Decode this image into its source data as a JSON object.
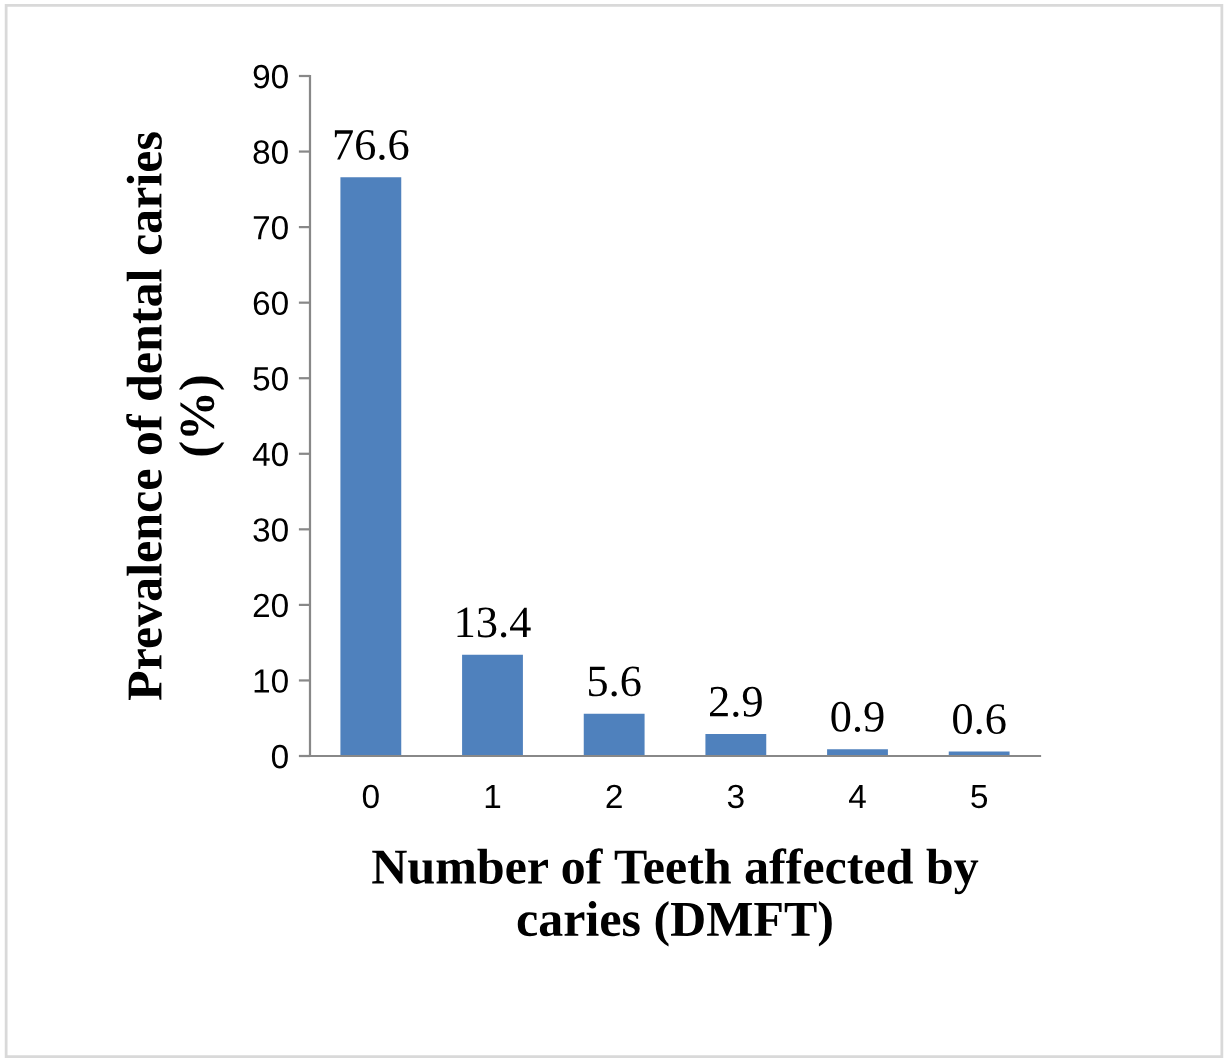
{
  "chart_data": {
    "type": "bar",
    "xlabel": "Number of Teeth affected by\ncaries (DMFT)",
    "ylabel": "Prevalence of dental caries\n(%)",
    "categories": [
      "0",
      "1",
      "2",
      "3",
      "4",
      "5"
    ],
    "values": [
      76.6,
      13.4,
      5.6,
      2.9,
      0.9,
      0.6
    ],
    "color": "#4f81bd",
    "data_labels": true,
    "ylim": [
      0,
      90
    ],
    "yticks": [
      0,
      10,
      20,
      30,
      40,
      50,
      60,
      70,
      80,
      90
    ],
    "grid": false,
    "legend": false
  }
}
